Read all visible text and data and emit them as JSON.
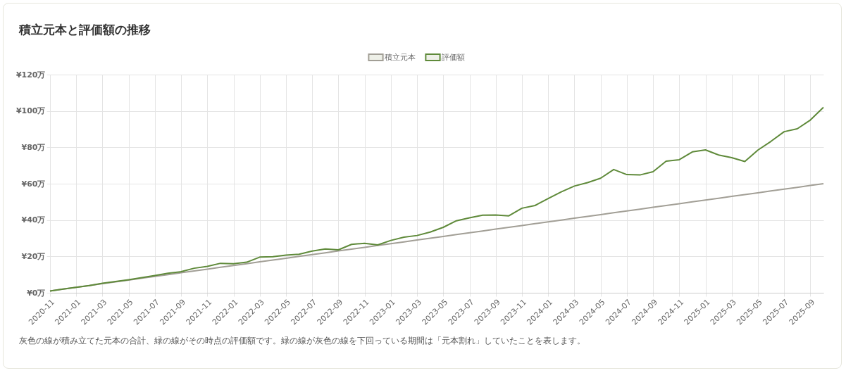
{
  "chart_data": {
    "type": "line",
    "title": "積立元本と評価額の推移",
    "categories": [
      "2020-11",
      null,
      "2021-01",
      null,
      "2021-03",
      null,
      "2021-05",
      null,
      "2021-07",
      null,
      "2021-09",
      null,
      "2021-11",
      null,
      "2022-01",
      null,
      "2022-03",
      null,
      "2022-05",
      null,
      "2022-07",
      null,
      "2022-09",
      null,
      "2022-11",
      null,
      "2023-01",
      null,
      "2023-03",
      null,
      "2023-05",
      null,
      "2023-07",
      null,
      "2023-09",
      null,
      "2023-11",
      null,
      "2024-01",
      null,
      "2024-03",
      null,
      "2024-05",
      null,
      "2024-07",
      null,
      "2024-09",
      null,
      "2024-11",
      null,
      "2025-01",
      null,
      "2025-03",
      null,
      "2025-05",
      null,
      "2025-07",
      null,
      "2025-09",
      null
    ],
    "series": [
      {
        "name": "積立元本",
        "color": "#a29f96",
        "values": [
          1,
          2,
          3,
          4,
          5,
          6,
          7,
          8,
          9,
          10,
          11,
          12,
          13,
          14,
          15,
          16,
          17,
          18,
          19,
          20,
          21,
          22,
          23,
          24,
          25,
          26,
          27,
          28,
          29,
          30,
          31,
          32,
          33,
          34,
          35,
          36,
          37,
          38,
          39,
          40,
          41,
          42,
          43,
          44,
          45,
          46,
          47,
          48,
          49,
          50,
          51,
          52,
          53,
          54,
          55,
          56,
          57,
          58,
          59,
          60
        ]
      },
      {
        "name": "評価額",
        "color": "#5f8a3a",
        "values": [
          1,
          2,
          3,
          4,
          5.2,
          6.2,
          7.2,
          8.3,
          9.5,
          10.7,
          11.6,
          13.5,
          14.5,
          16.2,
          16,
          16.8,
          19.6,
          19.8,
          20.7,
          21.2,
          22.9,
          24.1,
          23.6,
          26.6,
          27.2,
          26.3,
          28.8,
          30.6,
          31.5,
          33.4,
          36,
          39.6,
          41.2,
          42.7,
          42.8,
          42.3,
          46.5,
          48,
          51.8,
          55.5,
          58.7,
          60.6,
          63,
          67.8,
          65,
          64.8,
          66.6,
          72.4,
          73.2,
          77.5,
          78.6,
          75.8,
          74.3,
          72.2,
          78.5,
          83.3,
          88.6,
          90.2,
          95,
          102
        ]
      }
    ],
    "ylim": [
      0,
      120
    ],
    "yticks": [
      {
        "value": 0,
        "label": "¥0万"
      },
      {
        "value": 20,
        "label": "¥20万"
      },
      {
        "value": 40,
        "label": "¥40万"
      },
      {
        "value": 60,
        "label": "¥60万"
      },
      {
        "value": 80,
        "label": "¥80万"
      },
      {
        "value": 100,
        "label": "¥100万"
      },
      {
        "value": 120,
        "label": "¥120万"
      }
    ],
    "grid": true,
    "legend": "top",
    "marker": "none",
    "line_style": "solid",
    "annotations": [
      "灰色の線が積み立てた元本の合計、緑の線がその時点の評価額です。緑の線が灰色の線を下回っている期間は「元本割れ」していたことを表します。"
    ]
  }
}
